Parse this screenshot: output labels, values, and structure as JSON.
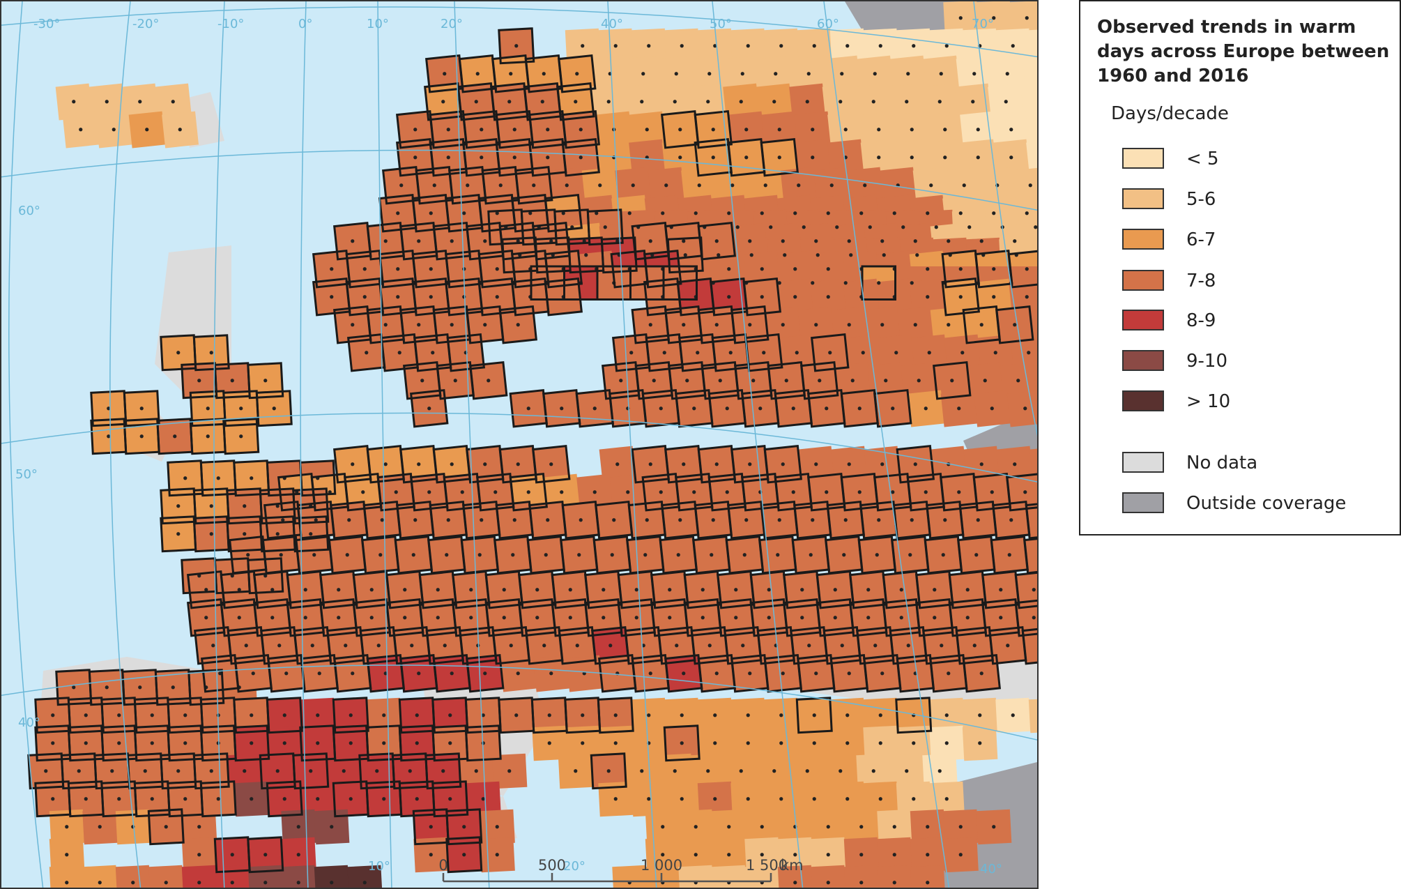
{
  "map": {
    "legend_title": "Observed trends in warm days across Europe between 1960 and 2016",
    "legend_subtitle": "Days/decade",
    "legend": [
      {
        "label": "< 5",
        "color": "#fbe0b5"
      },
      {
        "label": "5-6",
        "color": "#f2c085"
      },
      {
        "label": "6-7",
        "color": "#e99a50"
      },
      {
        "label": "7-8",
        "color": "#d47349"
      },
      {
        "label": "8-9",
        "color": "#c23b3a"
      },
      {
        "label": "9-10",
        "color": "#8b4a45"
      },
      {
        "label": "> 10",
        "color": "#59312f"
      },
      {
        "label": "No data",
        "color": "#dcdcdc"
      },
      {
        "label": "Outside coverage",
        "color": "#a0a0a5"
      }
    ],
    "sea_color": "#cdeaf8",
    "graticule_color": "#6bb8d8",
    "longitude_labels": [
      "-30°",
      "-20°",
      "-10°",
      "0°",
      "10°",
      "20°",
      "40°",
      "50°",
      "60°",
      "70°",
      "40°",
      "20°",
      "10°"
    ],
    "latitude_labels": [
      "60°",
      "50°",
      "40°"
    ],
    "scale_bar": {
      "ticks": [
        "0",
        "500",
        "1 000",
        "1 500"
      ],
      "unit": "km"
    }
  }
}
